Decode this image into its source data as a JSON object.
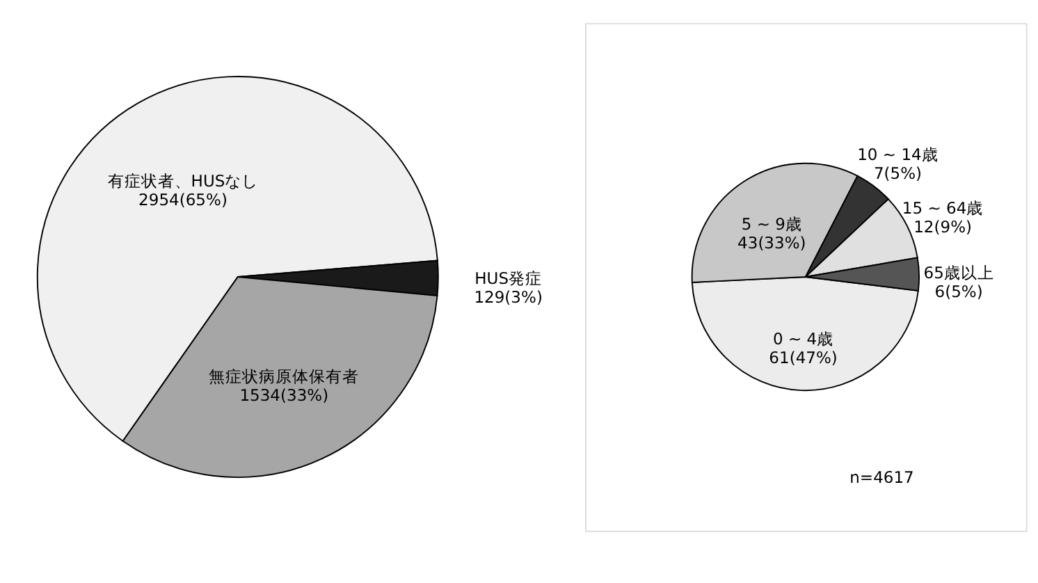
{
  "chart_data": [
    {
      "type": "pie",
      "categories": [
        "有症状者、HUSなし",
        "HUS発症",
        "無症状病原体保有者"
      ],
      "values": [
        2954,
        129,
        1534
      ],
      "value_labels": [
        "2954(65%)",
        "129(3%)",
        "1534(33%)"
      ],
      "colors": [
        "#f0f0f0",
        "#1a1a1a",
        "#a6a6a6"
      ]
    },
    {
      "type": "pie",
      "categories": [
        "0 ~ 4歳",
        "5 ~ 9歳",
        "10 ~ 14歳",
        "15 ~ 64歳",
        "65歳以上"
      ],
      "values": [
        61,
        43,
        7,
        12,
        6
      ],
      "value_labels": [
        "61(47%)",
        "43(33%)",
        "7(5%)",
        "12(9%)",
        "6(5%)"
      ],
      "colors": [
        "#ececec",
        "#c8c8c8",
        "#333333",
        "#e0e0e0",
        "#555555"
      ],
      "annotations": [
        "n=4617"
      ]
    }
  ]
}
